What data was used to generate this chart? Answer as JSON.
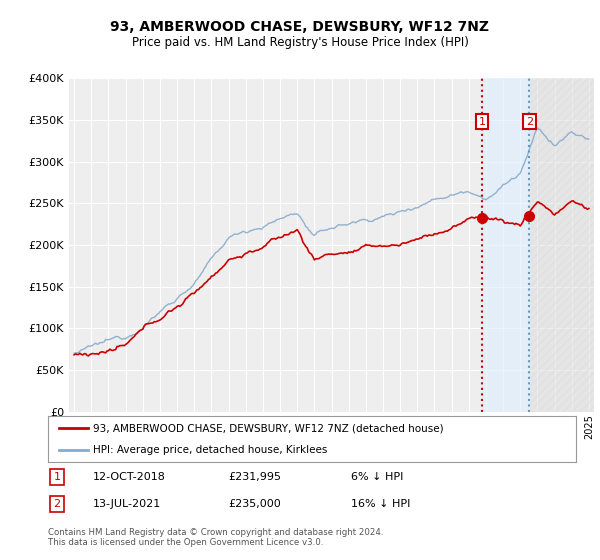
{
  "title": "93, AMBERWOOD CHASE, DEWSBURY, WF12 7NZ",
  "subtitle": "Price paid vs. HM Land Registry's House Price Index (HPI)",
  "legend_label_red": "93, AMBERWOOD CHASE, DEWSBURY, WF12 7NZ (detached house)",
  "legend_label_blue": "HPI: Average price, detached house, Kirklees",
  "footnote": "Contains HM Land Registry data © Crown copyright and database right 2024.\nThis data is licensed under the Open Government Licence v3.0.",
  "transaction1_label": "1",
  "transaction1_date": "12-OCT-2018",
  "transaction1_price": "£231,995",
  "transaction1_hpi": "6% ↓ HPI",
  "transaction2_label": "2",
  "transaction2_date": "13-JUL-2021",
  "transaction2_price": "£235,000",
  "transaction2_hpi": "16% ↓ HPI",
  "ylim": [
    0,
    400000
  ],
  "yticks": [
    0,
    50000,
    100000,
    150000,
    200000,
    250000,
    300000,
    350000,
    400000
  ],
  "background_color": "#ffffff",
  "plot_bg_color": "#eeeeee",
  "grid_color": "#ffffff",
  "red_color": "#cc0000",
  "blue_color": "#88aacc",
  "transaction1_x": 2018.78,
  "transaction2_x": 2021.53,
  "marker1_price": 231995,
  "marker2_price": 235000,
  "xlim_left": 1994.7,
  "xlim_right": 2025.3
}
